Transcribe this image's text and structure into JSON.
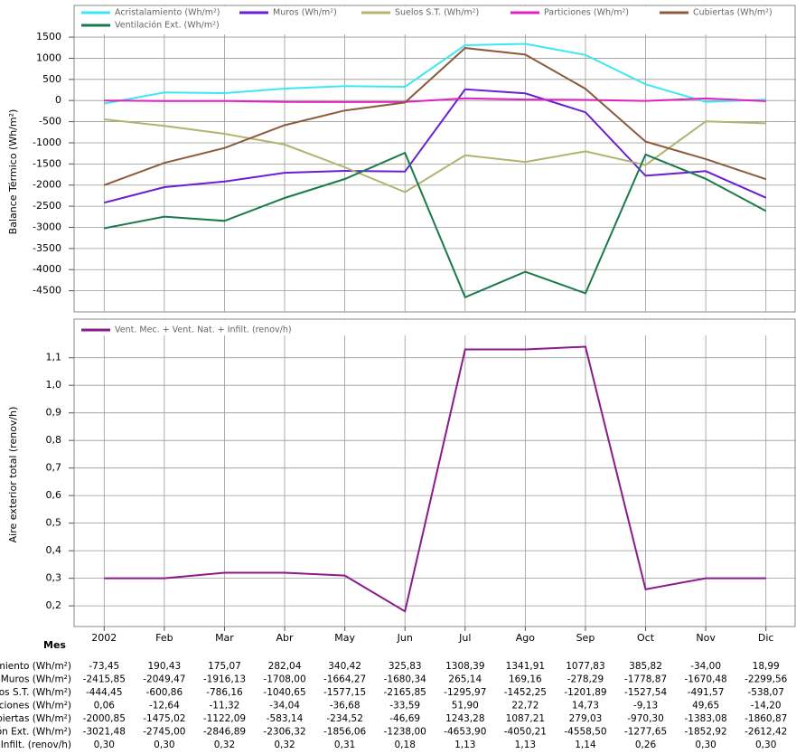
{
  "chart_data": [
    {
      "type": "line",
      "ylabel": "Balance Térmico (Wh/m²)",
      "ylim": [
        -5000,
        2250
      ],
      "yticks": [
        -4500,
        -4000,
        -3500,
        -3000,
        -2500,
        -2000,
        -1500,
        -1000,
        -500,
        0,
        500,
        1000,
        1500
      ],
      "grid": true,
      "series": [
        {
          "name": "Acristalamiento (Wh/m²)",
          "color": "#3ee8f2",
          "values": [
            -73.45,
            190.43,
            175.07,
            282.04,
            340.42,
            325.83,
            1308.39,
            1341.91,
            1077.83,
            385.82,
            -34.0,
            18.99
          ],
          "value_labels": [
            "-73,45",
            "190,43",
            "175,07",
            "282,04",
            "340,42",
            "325,83",
            "1308,39",
            "1341,91",
            "1077,83",
            "385,82",
            "-34,00",
            "18,99"
          ]
        },
        {
          "name": "Muros (Wh/m²)",
          "color": "#6a1fd6",
          "values": [
            -2415.85,
            -2049.47,
            -1916.13,
            -1708.0,
            -1664.27,
            -1680.34,
            265.14,
            169.16,
            -278.29,
            -1778.87,
            -1670.48,
            -2299.56
          ],
          "value_labels": [
            "-2415,85",
            "-2049,47",
            "-1916,13",
            "-1708,00",
            "-1664,27",
            "-1680,34",
            "265,14",
            "169,16",
            "-278,29",
            "-1778,87",
            "-1670,48",
            "-2299,56"
          ]
        },
        {
          "name": "Suelos S.T. (Wh/m²)",
          "color": "#b3b370",
          "values": [
            -444.45,
            -600.86,
            -786.16,
            -1040.65,
            -1577.15,
            -2165.85,
            -1295.97,
            -1452.25,
            -1201.89,
            -1527.54,
            -491.57,
            -538.07
          ],
          "value_labels": [
            "-444,45",
            "-600,86",
            "-786,16",
            "-1040,65",
            "-1577,15",
            "-2165,85",
            "-1295,97",
            "-1452,25",
            "-1201,89",
            "-1527,54",
            "-491,57",
            "-538,07"
          ]
        },
        {
          "name": "Particiones (Wh/m²)",
          "color": "#e020c0",
          "values": [
            0.06,
            -12.64,
            -11.32,
            -34.04,
            -36.68,
            -33.59,
            51.9,
            22.72,
            14.73,
            -9.13,
            49.65,
            -14.2
          ],
          "value_labels": [
            "0,06",
            "-12,64",
            "-11,32",
            "-34,04",
            "-36,68",
            "-33,59",
            "51,90",
            "22,72",
            "14,73",
            "-9,13",
            "49,65",
            "-14,20"
          ]
        },
        {
          "name": "Cubiertas (Wh/m²)",
          "color": "#8c5a3c",
          "values": [
            -2000.85,
            -1475.02,
            -1122.09,
            -583.14,
            -234.52,
            -46.69,
            1243.28,
            1087.21,
            279.03,
            -970.3,
            -1383.08,
            -1860.87
          ],
          "value_labels": [
            "-2000,85",
            "-1475,02",
            "-1122,09",
            "-583,14",
            "-234,52",
            "-46,69",
            "1243,28",
            "1087,21",
            "279,03",
            "-970,30",
            "-1383,08",
            "-1860,87"
          ]
        },
        {
          "name": "Ventilación Ext. (Wh/m²)",
          "color": "#1a7a4c",
          "values": [
            -3021.48,
            -2745.0,
            -2846.89,
            -2306.32,
            -1856.06,
            -1238.0,
            -4653.9,
            -4050.21,
            -4558.5,
            -1277.65,
            -1852.92,
            -2612.42
          ],
          "value_labels": [
            "-3021,48",
            "-2745,00",
            "-2846,89",
            "-2306,32",
            "-1856,06",
            "-1238,00",
            "-4653,90",
            "-4050,21",
            "-4558,50",
            "-1277,65",
            "-1852,92",
            "-2612,42"
          ]
        }
      ]
    },
    {
      "type": "line",
      "ylabel": "Aire exterior total (renov/h)",
      "xlabel": "Mes",
      "categories": [
        "2002",
        "Feb",
        "Mar",
        "Abr",
        "May",
        "Jun",
        "Jul",
        "Ago",
        "Sep",
        "Oct",
        "Nov",
        "Dic"
      ],
      "ylim": [
        0.125,
        1.24
      ],
      "yticks": [
        {
          "value": 0.2,
          "label": "0,2"
        },
        {
          "value": 0.3,
          "label": "0,3"
        },
        {
          "value": 0.4,
          "label": "0,4"
        },
        {
          "value": 0.5,
          "label": "0,5"
        },
        {
          "value": 0.6,
          "label": "0,6"
        },
        {
          "value": 0.7,
          "label": "0,7"
        },
        {
          "value": 0.8,
          "label": "0,8"
        },
        {
          "value": 0.9,
          "label": "0,9"
        },
        {
          "value": 1.0,
          "label": "1,0"
        },
        {
          "value": 1.1,
          "label": "1,1"
        }
      ],
      "grid": true,
      "series": [
        {
          "name": "Vent. Mec. + Vent. Nat. + Infilt. (renov/h)",
          "color": "#8b1a8b",
          "values": [
            0.3,
            0.3,
            0.32,
            0.32,
            0.31,
            0.18,
            1.13,
            1.13,
            1.14,
            0.26,
            0.3,
            0.3
          ],
          "value_labels": [
            "0,30",
            "0,30",
            "0,32",
            "0,32",
            "0,31",
            "0,18",
            "1,13",
            "1,13",
            "1,14",
            "0,26",
            "0,30",
            "0,30"
          ]
        }
      ]
    }
  ]
}
